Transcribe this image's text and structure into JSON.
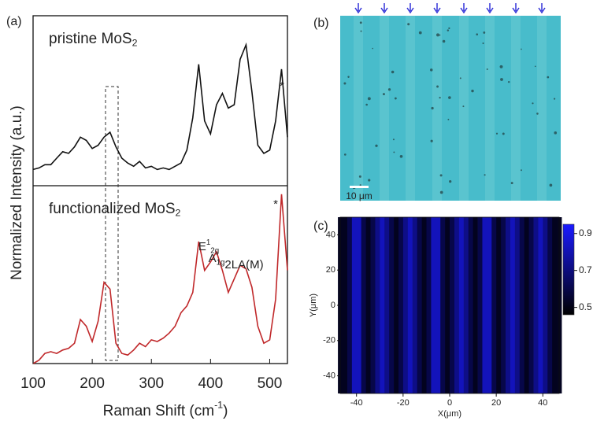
{
  "chart_data": [
    {
      "type": "line",
      "panel": "(a)",
      "ylabel": "Normalized Intensity (a.u.)",
      "title": {
        "text": "pristine MoS",
        "sub": "2"
      },
      "annotations": [
        {
          "text": "*"
        }
      ],
      "color": "#111111",
      "xlim": [
        100,
        530
      ],
      "ylim": [
        0,
        1.05
      ],
      "x": [
        100,
        110,
        120,
        130,
        140,
        150,
        160,
        170,
        180,
        190,
        200,
        210,
        220,
        230,
        240,
        250,
        260,
        270,
        280,
        290,
        300,
        310,
        320,
        330,
        340,
        350,
        360,
        370,
        380,
        390,
        400,
        410,
        420,
        430,
        440,
        450,
        460,
        470,
        480,
        490,
        500,
        510,
        520,
        530
      ],
      "values": [
        0.1,
        0.11,
        0.13,
        0.13,
        0.17,
        0.21,
        0.2,
        0.24,
        0.3,
        0.28,
        0.23,
        0.25,
        0.3,
        0.33,
        0.24,
        0.17,
        0.14,
        0.12,
        0.15,
        0.11,
        0.12,
        0.1,
        0.11,
        0.1,
        0.12,
        0.14,
        0.22,
        0.42,
        0.75,
        0.4,
        0.32,
        0.5,
        0.57,
        0.48,
        0.5,
        0.78,
        0.87,
        0.58,
        0.25,
        0.2,
        0.22,
        0.4,
        0.72,
        0.3
      ]
    },
    {
      "type": "line",
      "title": {
        "text": "functionalized MoS",
        "sub": "2"
      },
      "annotations": [
        {
          "text": "E",
          "sup": "1",
          "sub": "2g"
        },
        {
          "text": "A",
          "sub": "1g"
        },
        {
          "text": "2LA(M)"
        },
        {
          "text": "*"
        }
      ],
      "xlabel": {
        "text": "Raman Shift (cm",
        "sup": "-1",
        "tail": ")"
      },
      "color": "#c0282a",
      "xlim": [
        100,
        530
      ],
      "ylim": [
        0,
        1.05
      ],
      "xticks": [
        100,
        200,
        300,
        400,
        500
      ],
      "x": [
        100,
        110,
        120,
        130,
        140,
        150,
        160,
        170,
        180,
        190,
        200,
        210,
        220,
        230,
        240,
        250,
        260,
        270,
        280,
        290,
        300,
        310,
        320,
        330,
        340,
        350,
        360,
        370,
        380,
        390,
        400,
        410,
        420,
        430,
        440,
        450,
        460,
        470,
        480,
        490,
        500,
        510,
        520,
        530
      ],
      "values": [
        0.0,
        0.02,
        0.06,
        0.07,
        0.06,
        0.08,
        0.09,
        0.12,
        0.26,
        0.22,
        0.13,
        0.25,
        0.48,
        0.44,
        0.12,
        0.06,
        0.05,
        0.08,
        0.12,
        0.1,
        0.14,
        0.13,
        0.15,
        0.18,
        0.22,
        0.3,
        0.34,
        0.42,
        0.72,
        0.55,
        0.6,
        0.66,
        0.55,
        0.42,
        0.5,
        0.58,
        0.56,
        0.45,
        0.22,
        0.12,
        0.14,
        0.38,
        1.0,
        0.55
      ]
    },
    {
      "type": "heatmap",
      "panel": "(c)",
      "xlabel": "X(μm)",
      "ylabel": "Y(μm)",
      "xlim": [
        -47,
        47
      ],
      "ylim": [
        -50,
        50
      ],
      "xticks": [
        -40,
        -20,
        0,
        20,
        40
      ],
      "yticks": [
        -40,
        -20,
        0,
        20,
        40
      ],
      "clim": [
        0.46,
        0.95
      ],
      "cticks": [
        0.5,
        0.7,
        0.9
      ],
      "x": [
        -47,
        -45,
        -43,
        -41,
        -39,
        -37,
        -35,
        -33,
        -31,
        -29,
        -27,
        -25,
        -23,
        -21,
        -19,
        -17,
        -15,
        -13,
        -11,
        -9,
        -7,
        -5,
        -3,
        -1,
        1,
        3,
        5,
        7,
        9,
        11,
        13,
        15,
        17,
        19,
        21,
        23,
        25,
        27,
        29,
        31,
        33,
        35,
        37,
        39,
        41,
        43,
        45,
        47
      ],
      "values": [
        0.52,
        0.52,
        0.6,
        0.82,
        0.82,
        0.6,
        0.52,
        0.6,
        0.72,
        0.82,
        0.72,
        0.6,
        0.52,
        0.6,
        0.72,
        0.82,
        0.72,
        0.6,
        0.52,
        0.6,
        0.82,
        0.82,
        0.6,
        0.52,
        0.6,
        0.72,
        0.82,
        0.72,
        0.6,
        0.52,
        0.6,
        0.82,
        0.82,
        0.6,
        0.52,
        0.6,
        0.72,
        0.82,
        0.72,
        0.6,
        0.52,
        0.6,
        0.72,
        0.82,
        0.72,
        0.6,
        0.52,
        0.52
      ]
    },
    {
      "type": "image",
      "panel": "(b)",
      "scale_bar": "10 μm"
    }
  ]
}
